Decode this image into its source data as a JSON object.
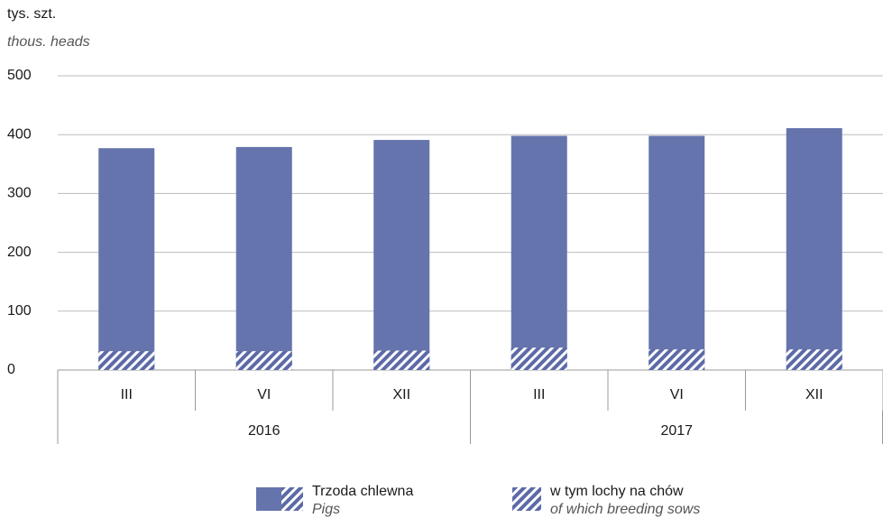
{
  "chart_data": {
    "type": "bar",
    "y_label": "tys. szt.",
    "y_label_en": "thous. heads",
    "categories": [
      "III",
      "VI",
      "XII",
      "III",
      "VI",
      "XII"
    ],
    "years": [
      "2016",
      "2017"
    ],
    "series": [
      {
        "name": "Trzoda chlewna",
        "name_en": "Pigs",
        "color": "#6674ad",
        "values": [
          377,
          379,
          391,
          398,
          398,
          411
        ]
      },
      {
        "name": "w tym lochy na chów",
        "name_en": "of which breeding sows",
        "color": "#5c6aa8",
        "pattern": "hatch",
        "values": [
          32,
          32,
          33,
          38,
          35,
          35
        ]
      }
    ],
    "ylim": [
      0,
      500
    ],
    "yticks": [
      0,
      100,
      200,
      300,
      400,
      500
    ],
    "grid": true
  }
}
